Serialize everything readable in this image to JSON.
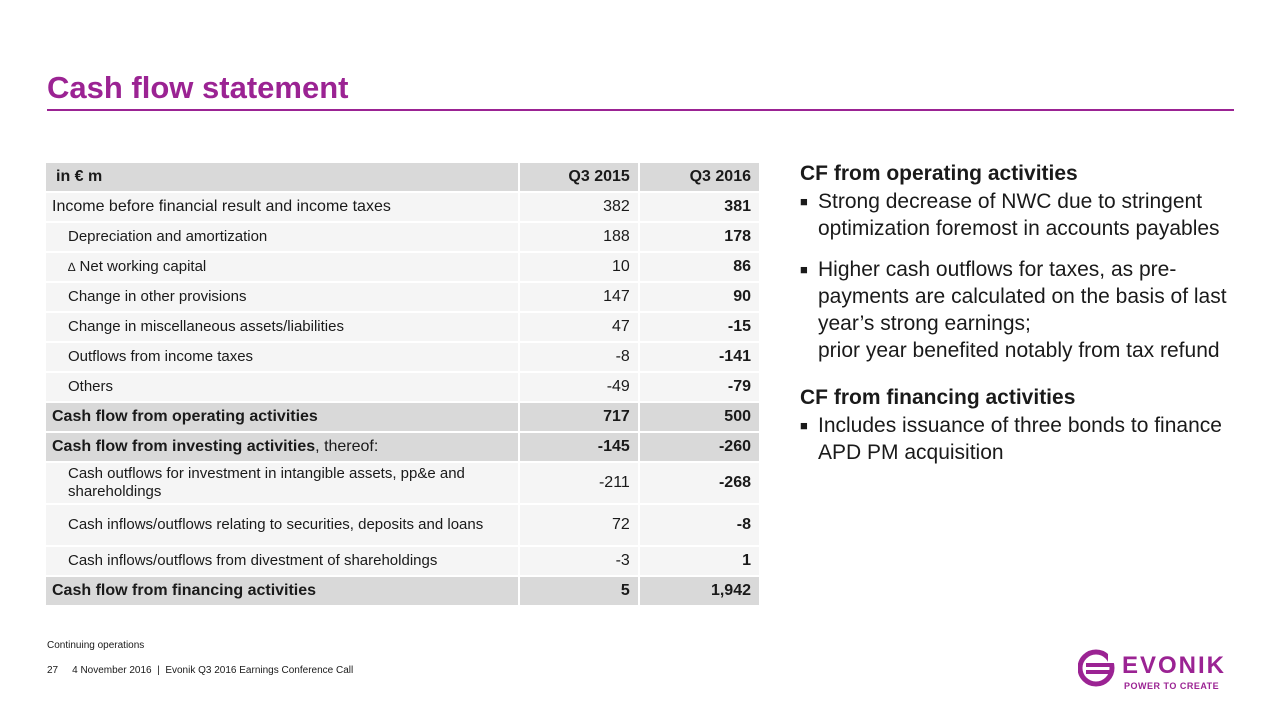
{
  "title": "Cash flow statement",
  "colors": {
    "accent": "#9b2393",
    "header_bg": "#d9d9d9",
    "row_bg": "#f5f5f5"
  },
  "table": {
    "header": {
      "label": "in € m",
      "q3_2015": "Q3 2015",
      "q3_2016": "Q3 2016"
    },
    "rows": [
      {
        "label": "Income before financial result and income taxes",
        "q3_2015": "382",
        "q3_2016": "381"
      },
      {
        "label": "Depreciation and amortization",
        "q3_2015": "188",
        "q3_2016": "178"
      },
      {
        "delta": "∆",
        "label": "Net working capital",
        "q3_2015": "10",
        "q3_2016": "86"
      },
      {
        "label": "Change in other provisions",
        "q3_2015": "147",
        "q3_2016": "90"
      },
      {
        "label": "Change in miscellaneous assets/liabilities",
        "q3_2015": "47",
        "q3_2016": "-15"
      },
      {
        "label": "Outflows from income taxes",
        "q3_2015": "-8",
        "q3_2016": "-141"
      },
      {
        "label": "Others",
        "q3_2015": "-49",
        "q3_2016": "-79"
      },
      {
        "label": "Cash flow from operating activities",
        "q3_2015": "717",
        "q3_2016": "500"
      },
      {
        "label": "Cash flow from investing activities",
        "suffix": ", thereof:",
        "q3_2015": "-145",
        "q3_2016": "-260"
      },
      {
        "label": "Cash outflows for investment in intangible assets, pp&e and shareholdings",
        "q3_2015": "-211",
        "q3_2016": "-268"
      },
      {
        "label": "Cash inflows/outflows relating to securities, deposits and loans",
        "q3_2015": "72",
        "q3_2016": "-8"
      },
      {
        "label": "Cash inflows/outflows from divestment of shareholdings",
        "q3_2015": "-3",
        "q3_2016": "1"
      },
      {
        "label": "Cash flow from financing activities",
        "q3_2015": "5",
        "q3_2016": "1,942"
      }
    ]
  },
  "notes": {
    "operating_title": "CF from operating activities",
    "operating_bullets": [
      "Strong decrease of NWC due to stringent optimization foremost in accounts payables",
      "Higher cash outflows for taxes, as pre-payments are calculated on the basis of last year’s strong earnings;",
      "prior year benefited notably from tax refund"
    ],
    "financing_title": "CF from financing activities",
    "financing_bullets": [
      "Includes issuance of three bonds to finance APD PM acquisition"
    ],
    "bullet_mark": "■"
  },
  "footnote": "Continuing operations",
  "footer": {
    "page": "27",
    "text": "4 November 2016  |  Evonik Q3 2016 Earnings Conference Call"
  },
  "logo": {
    "name": "EVONIK",
    "tagline": "POWER TO CREATE",
    "icon": "evonik-logo-icon"
  }
}
